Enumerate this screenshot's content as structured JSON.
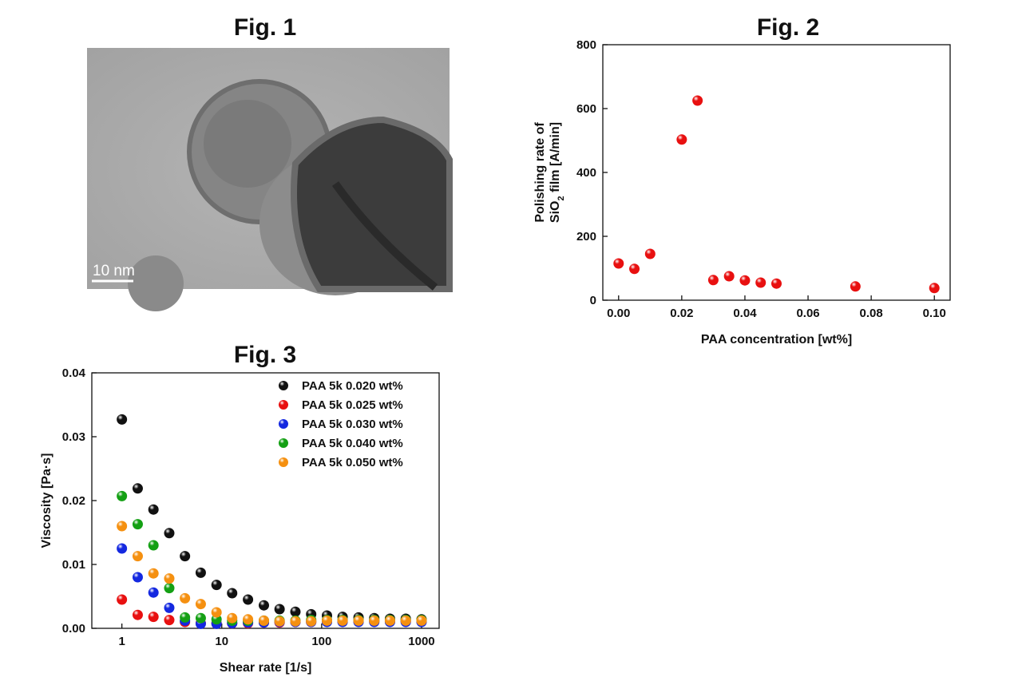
{
  "image": {
    "title": "Fig. 1",
    "scale_bar": "10 nm"
  },
  "chart_data": [
    {
      "type": "scatter",
      "title": "Fig. 2",
      "ylabel_line1": "Polishing rate of",
      "ylabel_line2": [
        "SiO",
        "2",
        " film [A/min]"
      ],
      "xlabel": "PAA concentration [wt%]",
      "x": [
        0,
        0.005,
        0.01,
        0.02,
        0.025,
        0.03,
        0.035,
        0.04,
        0.045,
        0.05,
        0.075,
        0.1
      ],
      "series": [
        {
          "color": "#e81010",
          "values": [
            115,
            98,
            145,
            503,
            625,
            63,
            75,
            62,
            55,
            52,
            43,
            38
          ]
        }
      ],
      "xlim": [
        -0.005,
        0.105
      ],
      "xticks": [
        {
          "value": 0,
          "label": "0.00"
        },
        {
          "value": 0.02,
          "label": "0.02"
        },
        {
          "value": 0.04,
          "label": "0.04"
        },
        {
          "value": 0.06,
          "label": "0.06"
        },
        {
          "value": 0.08,
          "label": "0.08"
        },
        {
          "value": 0.1,
          "label": "0.10"
        }
      ],
      "ylim": [
        0,
        800
      ],
      "yticks": [
        0,
        200,
        400,
        600,
        800
      ]
    },
    {
      "type": "scatter",
      "title": "Fig. 3",
      "xscale": "log",
      "ylabel": "Viscosity [Pa·s]",
      "xlabel": "Shear rate [1/s]",
      "x": [
        1,
        1.44,
        2.07,
        2.98,
        4.28,
        6.16,
        8.86,
        12.7,
        18.3,
        26.4,
        37.9,
        54.6,
        78.5,
        113,
        162,
        234,
        336,
        483,
        695,
        1000
      ],
      "series": [
        {
          "name": "PAA 5k 0.020 wt%",
          "color": "#111111",
          "values": [
            0.0327,
            0.0219,
            0.0186,
            0.0149,
            0.0113,
            0.0087,
            0.0068,
            0.0055,
            0.0045,
            0.0036,
            0.003,
            0.0026,
            0.0022,
            0.002,
            0.0018,
            0.0017,
            0.0016,
            0.0015,
            0.0015,
            0.0014
          ]
        },
        {
          "name": "PAA 5k 0.025 wt%",
          "color": "#e81010",
          "values": [
            0.0045,
            0.0021,
            0.0018,
            0.0013,
            0.001,
            0.0008,
            0.0008,
            0.0008,
            0.0008,
            0.0009,
            0.0009,
            0.001,
            0.001,
            0.0011,
            0.0011,
            0.0011,
            0.0011,
            0.0011,
            0.0011,
            0.0011
          ]
        },
        {
          "name": "PAA 5k 0.030 wt%",
          "color": "#1428e0",
          "values": [
            0.0125,
            0.008,
            0.0056,
            0.0032,
            0.0012,
            0.0007,
            0.0007,
            0.0008,
            0.0009,
            0.0009,
            0.001,
            0.001,
            0.001,
            0.001,
            0.001,
            0.001,
            0.001,
            0.001,
            0.001,
            0.001
          ]
        },
        {
          "name": "PAA 5k 0.040 wt%",
          "color": "#14a014",
          "values": [
            0.0207,
            0.0163,
            0.013,
            0.0063,
            0.0017,
            0.0016,
            0.0014,
            0.0012,
            0.0012,
            0.0012,
            0.0012,
            0.0012,
            0.0013,
            0.0013,
            0.0013,
            0.0013,
            0.0013,
            0.0013,
            0.0013,
            0.0013
          ]
        },
        {
          "name": "PAA 5k 0.050 wt%",
          "color": "#f59010",
          "values": [
            0.016,
            0.0113,
            0.0086,
            0.0078,
            0.0047,
            0.0038,
            0.0025,
            0.0016,
            0.0014,
            0.0012,
            0.0011,
            0.0011,
            0.0011,
            0.0012,
            0.0012,
            0.0012,
            0.0012,
            0.0012,
            0.0012,
            0.0012
          ]
        }
      ],
      "legend": "upper right",
      "xlim": [
        0.5,
        1500
      ],
      "xticks": [
        1,
        10,
        100,
        1000
      ],
      "ylim": [
        0,
        0.04
      ],
      "yticks": [
        {
          "value": 0,
          "label": "0.00"
        },
        0.01,
        0.02,
        0.03,
        0.04
      ]
    }
  ]
}
